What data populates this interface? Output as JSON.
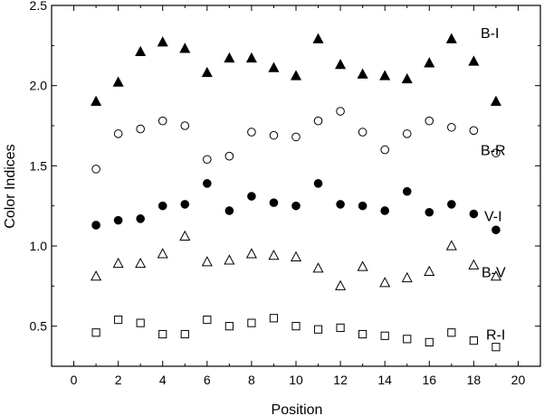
{
  "chart_data": {
    "type": "scatter",
    "title": "",
    "xlabel": "Position",
    "ylabel": "Color  Indices",
    "xlim": [
      -1,
      21
    ],
    "ylim": [
      0.25,
      2.5
    ],
    "xticks": [
      0,
      2,
      4,
      6,
      8,
      10,
      12,
      14,
      16,
      18,
      20
    ],
    "yticks": [
      0.5,
      1.0,
      1.5,
      2.0,
      2.5
    ],
    "xtick_labels": [
      "0",
      "2",
      "4",
      "6",
      "8",
      "10",
      "12",
      "14",
      "16",
      "18",
      "20"
    ],
    "ytick_labels": [
      "0.5",
      "1.0",
      "1.5",
      "2.0",
      "2.5"
    ],
    "grid": false,
    "x": [
      1,
      2,
      3,
      4,
      5,
      6,
      7,
      8,
      9,
      10,
      11,
      12,
      13,
      14,
      15,
      16,
      17,
      18,
      19
    ],
    "series": [
      {
        "name": "B-I",
        "marker": "filled-triangle",
        "values": [
          1.9,
          2.02,
          2.21,
          2.27,
          2.23,
          2.08,
          2.17,
          2.17,
          2.11,
          2.06,
          2.29,
          2.13,
          2.07,
          2.06,
          2.04,
          2.14,
          2.29,
          2.15,
          1.9
        ]
      },
      {
        "name": "B-R",
        "marker": "open-circle",
        "values": [
          1.48,
          1.7,
          1.73,
          1.78,
          1.75,
          1.54,
          1.56,
          1.71,
          1.69,
          1.68,
          1.78,
          1.84,
          1.71,
          1.6,
          1.7,
          1.78,
          1.74,
          1.72,
          1.58
        ]
      },
      {
        "name": "V-I",
        "marker": "filled-circle",
        "values": [
          1.13,
          1.16,
          1.17,
          1.25,
          1.26,
          1.39,
          1.22,
          1.31,
          1.27,
          1.25,
          1.39,
          1.26,
          1.25,
          1.22,
          1.34,
          1.21,
          1.26,
          1.2,
          1.1
        ]
      },
      {
        "name": "B-V",
        "marker": "open-triangle",
        "values": [
          0.81,
          0.89,
          0.89,
          0.95,
          1.06,
          0.9,
          0.91,
          0.95,
          0.94,
          0.93,
          0.86,
          0.75,
          0.87,
          0.77,
          0.8,
          0.84,
          1.0,
          0.88,
          0.81
        ]
      },
      {
        "name": "R-I",
        "marker": "open-square",
        "values": [
          0.46,
          0.54,
          0.52,
          0.45,
          0.45,
          0.54,
          0.5,
          0.52,
          0.55,
          0.5,
          0.48,
          0.49,
          0.45,
          0.44,
          0.42,
          0.4,
          0.46,
          0.41,
          0.37
        ]
      }
    ],
    "colors": {
      "marker": "#000000",
      "axis": "#000000",
      "background": "#ffffff"
    }
  }
}
